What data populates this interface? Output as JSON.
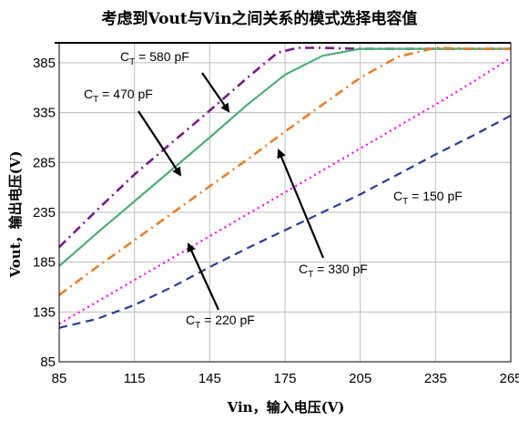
{
  "chart_data": {
    "type": "line",
    "title": "考虑到Vout与Vin之间关系的模式选择电容值",
    "xlabel": "Vin，输入电压(V)",
    "ylabel": "Vout，输出电压(V)",
    "xlim": [
      85,
      265
    ],
    "ylim": [
      85,
      405
    ],
    "xticks": [
      85,
      115,
      145,
      175,
      205,
      235,
      265
    ],
    "yticks": [
      85,
      135,
      185,
      235,
      285,
      335,
      385
    ],
    "grid": true,
    "legend": "none (inline annotations with arrows)",
    "series": [
      {
        "name": "CT = 580 pF",
        "label_main": "C",
        "label_sub": "T",
        "label_rest": "= 580 pF",
        "color": "#7a1a8c",
        "dash": "dash-dot",
        "x": [
          85,
          100,
          115,
          130,
          145,
          160,
          172,
          180,
          190,
          205,
          265
        ],
        "y": [
          200,
          237,
          273,
          305,
          337,
          370,
          395,
          400,
          400,
          399,
          399
        ]
      },
      {
        "name": "CT = 470 pF",
        "label_main": "C",
        "label_sub": "T",
        "label_rest": "= 470 pF",
        "color": "#4caf7a",
        "dash": "solid",
        "x": [
          85,
          100,
          115,
          130,
          145,
          160,
          175,
          190,
          205,
          265
        ],
        "y": [
          181,
          214,
          246,
          278,
          310,
          343,
          373,
          392,
          399,
          399
        ]
      },
      {
        "name": "CT = 330 pF",
        "label_main": "C",
        "label_sub": "T",
        "label_rest": "= 330 pF",
        "color": "#f07d28",
        "dash": "dash-dot",
        "x": [
          85,
          100,
          115,
          130,
          145,
          160,
          175,
          190,
          205,
          220,
          235,
          250,
          265
        ],
        "y": [
          152,
          180,
          207,
          234,
          261,
          288,
          316,
          343,
          370,
          391,
          400,
          399,
          399
        ]
      },
      {
        "name": "CT = 220 pF",
        "label_main": "C",
        "label_sub": "T",
        "label_rest": "= 220 pF",
        "color": "#ff00ff",
        "dash": "dotted",
        "x": [
          85,
          100,
          115,
          130,
          145,
          160,
          175,
          190,
          205,
          220,
          235,
          250,
          265
        ],
        "y": [
          123,
          145,
          167,
          189,
          211,
          233,
          255,
          277,
          299,
          321,
          343,
          366,
          390
        ]
      },
      {
        "name": "CT = 150 pF",
        "label_main": "C",
        "label_sub": "T",
        "label_rest": "= 150 pF",
        "color": "#2a3a9c",
        "dash": "dashed",
        "x": [
          85,
          100,
          115,
          130,
          145,
          160,
          175,
          190,
          205,
          220,
          235,
          250,
          265
        ],
        "y": [
          119,
          128,
          142,
          160,
          180,
          199,
          217,
          235,
          253,
          273,
          293,
          312,
          332
        ]
      }
    ]
  }
}
